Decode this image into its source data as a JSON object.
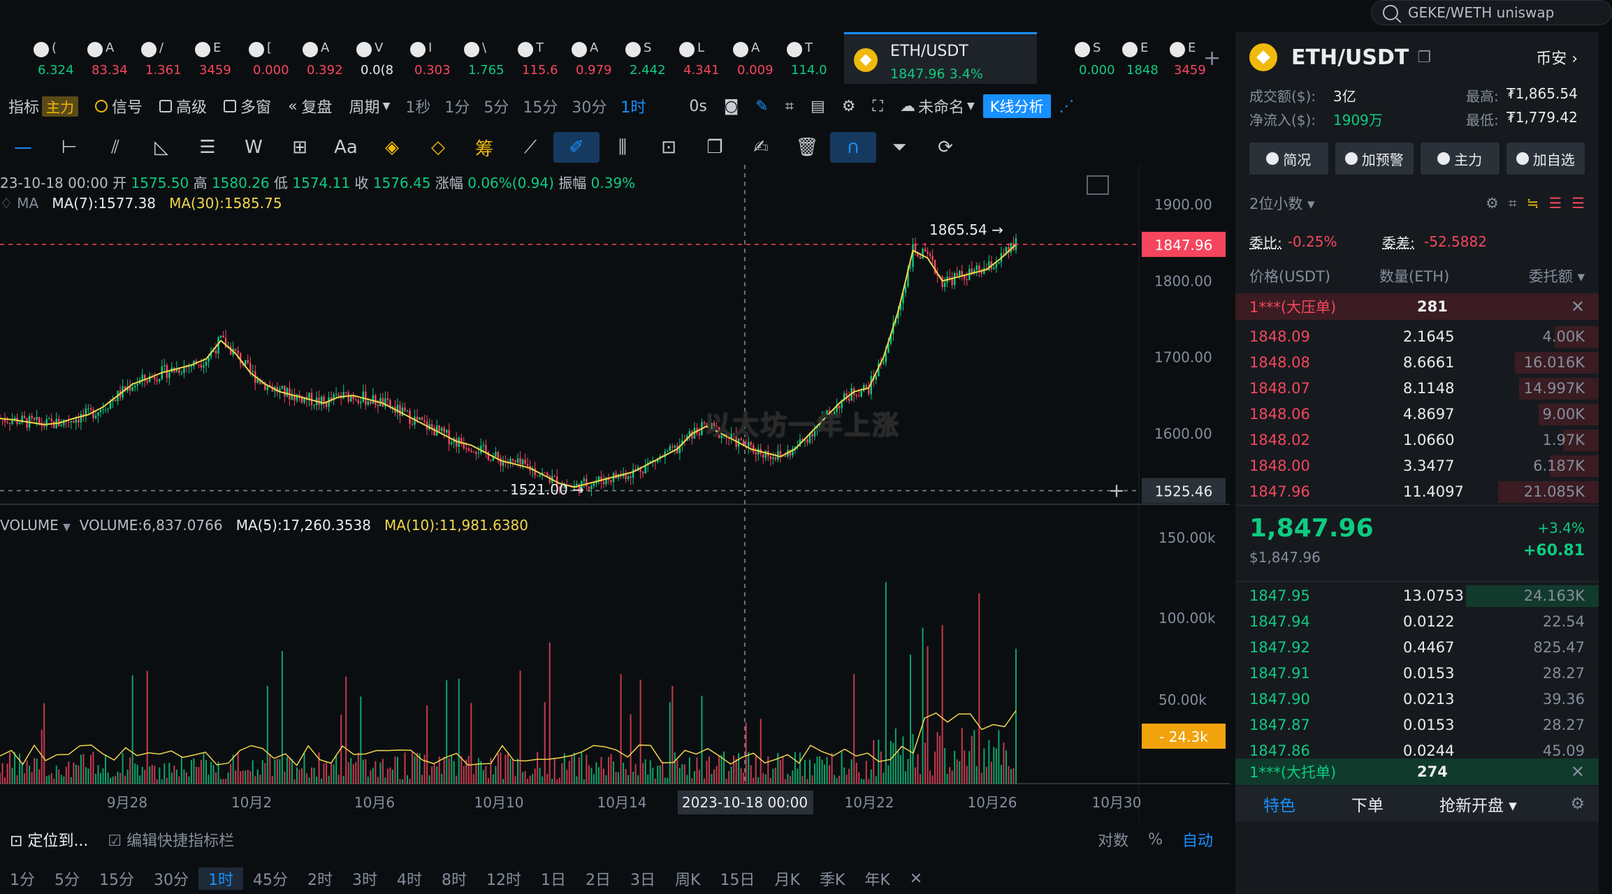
{
  "search": {
    "value": "GEKE/WETH uniswap"
  },
  "tickers": [
    {
      "name": "(",
      "value": "6.324",
      "color": "#0ecb81"
    },
    {
      "name": "A",
      "value": "83.34",
      "color": "#f6465d"
    },
    {
      "name": "/",
      "value": "1.361",
      "color": "#f6465d"
    },
    {
      "name": "E",
      "value": "3459",
      "color": "#f6465d"
    },
    {
      "name": "[",
      "value": "0.000",
      "color": "#f6465d"
    },
    {
      "name": "A",
      "value": "0.392",
      "color": "#f6465d"
    },
    {
      "name": "V",
      "value": "0.0(8",
      "color": "#eaecef"
    },
    {
      "name": "I",
      "value": "0.303",
      "color": "#f6465d"
    },
    {
      "name": "\\",
      "value": "1.765",
      "color": "#0ecb81"
    },
    {
      "name": "T",
      "value": "115.6",
      "color": "#f6465d"
    },
    {
      "name": "A",
      "value": "0.979",
      "color": "#f6465d"
    },
    {
      "name": "S",
      "value": "2.442",
      "color": "#0ecb81"
    },
    {
      "name": "L",
      "value": "4.341",
      "color": "#f6465d"
    },
    {
      "name": "A",
      "value": "0.009",
      "color": "#f6465d"
    },
    {
      "name": "T",
      "value": "114.0",
      "color": "#0ecb81"
    }
  ],
  "tickers_right": [
    {
      "name": "S",
      "value": "0.000",
      "color": "#0ecb81"
    },
    {
      "name": "E",
      "value": "1848",
      "color": "#0ecb81"
    },
    {
      "name": "E",
      "value": "3459",
      "color": "#f6465d"
    }
  ],
  "active_ticker": {
    "name": "ETH/USDT",
    "value": "1847.96  3.4%"
  },
  "toolbar": {
    "indicator": "指标",
    "main": "主力",
    "signal": "信号",
    "advanced": "高级",
    "multi": "多窗",
    "replay": "复盘",
    "period": "周期",
    "periods": [
      "1秒",
      "1分",
      "5分",
      "15分",
      "30分",
      "1时"
    ],
    "active_period": "1时",
    "countdown": "0s",
    "unnamed": "未命名",
    "kline": "K线分析"
  },
  "ohlc": {
    "time": "23-10-18 00:00",
    "open_l": "开",
    "open": "1575.50",
    "high_l": "高",
    "high": "1580.26",
    "low_l": "低",
    "low": "1574.11",
    "close_l": "收",
    "close": "1576.45",
    "chg_l": "涨幅",
    "chg": "0.06%(0.94)",
    "amp_l": "振幅",
    "amp": "0.39%"
  },
  "ma": {
    "label": "MA",
    "ma7": "MA(7):1577.38",
    "ma30": "MA(30):1585.75"
  },
  "volume": {
    "label": "VOLUME",
    "vol": "VOLUME:6,837.0766",
    "ma5": "MA(5):17,260.3538",
    "ma10": "MA(10):11,981.6380"
  },
  "chart_data": {
    "type": "line",
    "price_axis": [
      "1900.00",
      "1800.00",
      "1700.00",
      "1600.00"
    ],
    "volume_axis": [
      "150.00k",
      "100.00k",
      "50.00k"
    ],
    "current_price": "1847.96",
    "crosshair_price": "1525.46",
    "crosshair_volume": "24.3k",
    "high_label": "1865.54",
    "low_label": "1521.00",
    "x_labels": [
      "9月28",
      "10月2",
      "10月6",
      "10月10",
      "10月14",
      "2023-10-18 00:00",
      "10月22",
      "10月26",
      "10月30"
    ],
    "price_path": [
      1620,
      1618,
      1615,
      1612,
      1614,
      1620,
      1625,
      1635,
      1650,
      1665,
      1672,
      1680,
      1685,
      1690,
      1698,
      1722,
      1705,
      1680,
      1665,
      1655,
      1650,
      1645,
      1640,
      1648,
      1650,
      1645,
      1640,
      1630,
      1620,
      1610,
      1600,
      1590,
      1585,
      1575,
      1565,
      1560,
      1555,
      1545,
      1535,
      1530,
      1535,
      1540,
      1545,
      1550,
      1560,
      1570,
      1580,
      1600,
      1610,
      1600,
      1590,
      1580,
      1575,
      1570,
      1580,
      1600,
      1620,
      1640,
      1655,
      1660,
      1700,
      1760,
      1840,
      1830,
      1800,
      1805,
      1810,
      1815,
      1830,
      1848
    ]
  },
  "watermark": "以太坊一年上涨",
  "bottom": {
    "locate": "定位到...",
    "edit": "编辑快捷指标栏",
    "log": "对数",
    "pct": "%",
    "auto": "自动",
    "periods": [
      "1分",
      "5分",
      "15分",
      "30分",
      "1时",
      "45分",
      "2时",
      "3时",
      "4时",
      "8时",
      "12时",
      "1日",
      "2日",
      "3日",
      "周K",
      "15日",
      "月K",
      "季K",
      "年K"
    ],
    "active": "1时"
  },
  "panel": {
    "pair": "ETH/USDT",
    "exchange": "币安",
    "turnover_l": "成交额($):",
    "turnover": "3亿",
    "inflow_l": "净流入($):",
    "inflow": "1909万",
    "high_l": "最高:",
    "high": "₮1,865.54",
    "low_l": "最低:",
    "low": "₮1,779.42",
    "btns": [
      "简况",
      "加预警",
      "主力",
      "加自选"
    ],
    "decimals": "2位小数",
    "ratio_l": "委比:",
    "ratio": "-0.25%",
    "diff_l": "委差:",
    "diff": "-52.5882",
    "col_price": "价格(USDT)",
    "col_qty": "数量(ETH)",
    "col_amt": "委托额",
    "big_sell": "1***(大压单)",
    "big_sell_qty": "281",
    "asks": [
      {
        "p": "1848.09",
        "q": "2.1645",
        "a": "4.00K",
        "w": 0.12
      },
      {
        "p": "1848.08",
        "q": "8.6661",
        "a": "16.016K",
        "w": 0.42
      },
      {
        "p": "1848.07",
        "q": "8.1148",
        "a": "14.997K",
        "w": 0.39
      },
      {
        "p": "1848.06",
        "q": "4.8697",
        "a": "9.00K",
        "w": 0.24
      },
      {
        "p": "1848.02",
        "q": "1.0660",
        "a": "1.97K",
        "w": 0.06
      },
      {
        "p": "1848.00",
        "q": "3.3477",
        "a": "6.187K",
        "w": 0.16
      },
      {
        "p": "1847.96",
        "q": "11.4097",
        "a": "21.085K",
        "w": 0.55
      }
    ],
    "mid": "1,847.96",
    "mid_usd": "$1,847.96",
    "mid_pct": "+3.4%",
    "mid_chg": "+60.81",
    "bids": [
      {
        "p": "1847.95",
        "q": "13.0753",
        "a": "24.163K",
        "w": 1.0
      },
      {
        "p": "1847.94",
        "q": "0.0122",
        "a": "22.54",
        "w": 0.0
      },
      {
        "p": "1847.92",
        "q": "0.4467",
        "a": "825.47",
        "w": 0.0
      },
      {
        "p": "1847.91",
        "q": "0.0153",
        "a": "28.27",
        "w": 0.0
      },
      {
        "p": "1847.90",
        "q": "0.0213",
        "a": "39.36",
        "w": 0.0
      },
      {
        "p": "1847.87",
        "q": "0.0153",
        "a": "28.27",
        "w": 0.0
      },
      {
        "p": "1847.86",
        "q": "0.0244",
        "a": "45.09",
        "w": 0.0
      }
    ],
    "big_buy": "1***(大托单)",
    "big_buy_qty": "274",
    "tabs": [
      "特色",
      "下单",
      "抢新开盘"
    ]
  }
}
